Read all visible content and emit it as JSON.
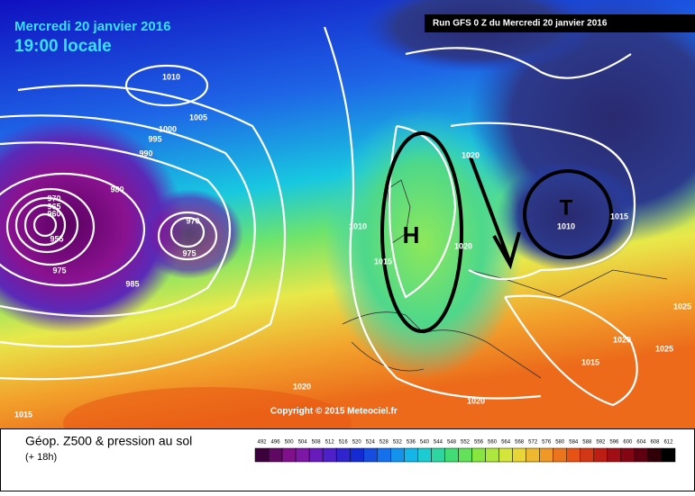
{
  "header": {
    "title": "Mercredi 20 janvier 2016",
    "time": "19:00 locale",
    "run": "Run GFS 0 Z du Mercredi 20 janvier 2016"
  },
  "isobar_labels": [
    "1010",
    "1005",
    "1000",
    "995",
    "990",
    "980",
    "970",
    "965",
    "960",
    "955",
    "970",
    "975",
    "975",
    "985",
    "1010",
    "1015",
    "1020",
    "1020",
    "1010",
    "1015",
    "1020",
    "1025",
    "1015",
    "1020",
    "1020",
    "1015",
    "1025"
  ],
  "centers": [
    "H",
    "T"
  ],
  "copyright": "Copyright © 2015 Meteociel.fr",
  "footer": {
    "title": "Géop. Z500 & pression au sol",
    "lead": "(+ 18h)"
  },
  "scale": [
    "492",
    "496",
    "500",
    "504",
    "508",
    "512",
    "516",
    "520",
    "524",
    "528",
    "532",
    "536",
    "540",
    "544",
    "548",
    "552",
    "556",
    "560",
    "564",
    "568",
    "572",
    "576",
    "580",
    "584",
    "588",
    "592",
    "596",
    "600",
    "604",
    "608",
    "612"
  ]
}
